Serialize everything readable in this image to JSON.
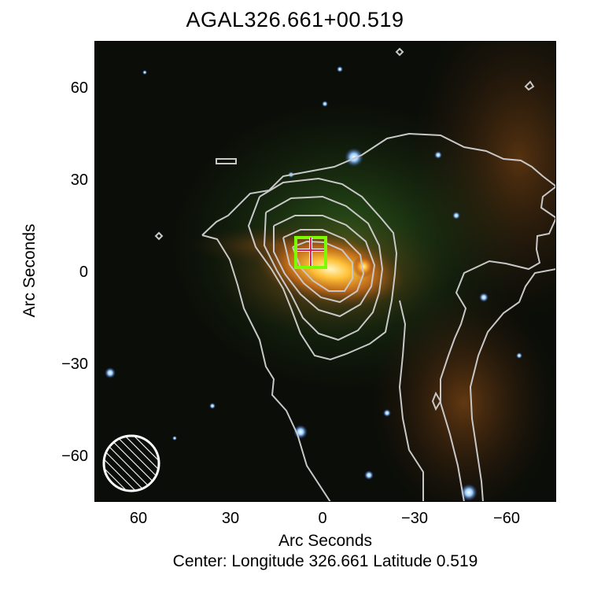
{
  "title": "AGAL326.661+00.519",
  "axes": {
    "xlabel": "Arc Seconds",
    "ylabel": "Arc Seconds",
    "xlim": [
      75,
      -75
    ],
    "ylim": [
      -75,
      75
    ],
    "xticks": [
      "60",
      "30",
      "0",
      "−30",
      "−60"
    ],
    "yticks": [
      "60",
      "30",
      "0",
      "−30",
      "−60"
    ]
  },
  "caption": "Center:  Longitude 326.661 Latitude 0.519",
  "image": {
    "description_colors": {
      "background": "#0a0d08",
      "nebula_core": "#ffb020",
      "nebula_glow": "#c46a10",
      "green_haze": "#2a5a1c",
      "contour": "#c8c8c8",
      "marker_box": "#7cfc00",
      "marker_cross": "#e0205a"
    }
  },
  "markers": {
    "source_box": "green-square-marker",
    "source_cross": "red-cross-marker",
    "beam": "hatched-beam-circle"
  }
}
